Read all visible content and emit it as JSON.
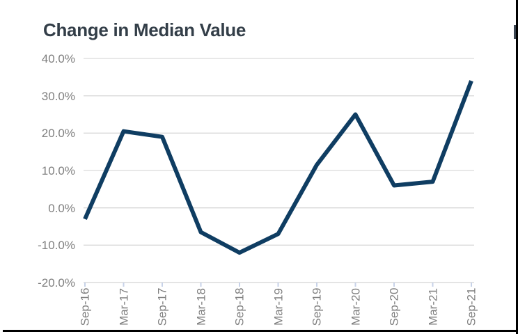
{
  "title": "Change in Median Value",
  "chart_data": {
    "type": "line",
    "title": "Change in Median Value",
    "categories": [
      "Sep-16",
      "Mar-17",
      "Sep-17",
      "Mar-18",
      "Sep-18",
      "Mar-19",
      "Sep-19",
      "Mar-20",
      "Sep-20",
      "Mar-21",
      "Sep-21"
    ],
    "series": [
      {
        "name": "Change in Median Value",
        "values": [
          -3,
          20.5,
          19,
          -6.5,
          -12,
          -7,
          11.5,
          25,
          6,
          7,
          34
        ]
      }
    ],
    "unit": "%",
    "y_ticks": [
      {
        "label": "40.0%",
        "value": 40
      },
      {
        "label": "30.0%",
        "value": 30
      },
      {
        "label": "20.0%",
        "value": 20
      },
      {
        "label": "10.0%",
        "value": 10
      },
      {
        "label": "0.0%",
        "value": 0
      },
      {
        "label": "-10.0%",
        "value": -10
      },
      {
        "label": "-20.0%",
        "value": -20
      }
    ],
    "ylim": [
      -20,
      40
    ],
    "grid": "horizontal",
    "legend": "none",
    "colors": {
      "line": "#0f3d62",
      "gridline": "#d9d9d9",
      "axis_line": "#d4d4d4",
      "tick_mark": "#c7d2e8",
      "axis_label": "#7f7f7f",
      "title": "#333e48",
      "background": "#ffffff",
      "frame_border": "#000000"
    }
  }
}
